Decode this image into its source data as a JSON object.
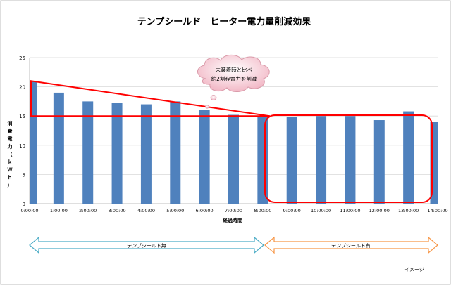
{
  "chart_data": {
    "type": "bar",
    "title": "テンプシールド　ヒーター電力量削減効果",
    "ylabel": "消費電力（ｋＷｈ）",
    "xlabel": "経過時間",
    "ylim": [
      0,
      25
    ],
    "yticks": [
      0,
      5,
      10,
      15,
      20,
      25
    ],
    "grid": true,
    "categories": [
      "0:00:00",
      "1:00:00",
      "2:00:00",
      "3:00:00",
      "4:00:00",
      "5:00:00",
      "6:00:00",
      "7:00:00",
      "8:00:00",
      "9:00:00",
      "10:00:00",
      "11:00:00",
      "12:00:00",
      "13:00:00",
      "14:00:00"
    ],
    "values": [
      21.0,
      19.0,
      17.5,
      17.2,
      17.0,
      17.5,
      16.0,
      15.2,
      15.0,
      14.8,
      15.0,
      15.0,
      14.3,
      15.8,
      14.0
    ],
    "bar_color": "#4f81bd",
    "highlight_color": "#ff0000",
    "callout": {
      "line1": "未装着時と比べ",
      "line2": "約2割程電力を削減"
    },
    "without_label": "テンプシールド無",
    "with_label": "テンプシールド有",
    "without_arrow_color": "#4bacc6",
    "with_arrow_color": "#f79646",
    "note": "イメージ"
  }
}
